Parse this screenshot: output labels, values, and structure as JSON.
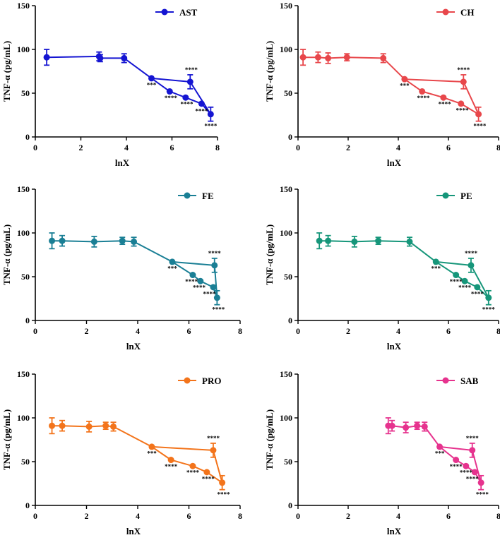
{
  "ylabel": "TNF-α (pg/mL)",
  "xlabel": "lnX",
  "xticks": [
    0,
    2,
    4,
    6,
    8
  ],
  "yticks": [
    0,
    50,
    100,
    150
  ],
  "chart_data": [
    {
      "type": "line",
      "name": "AST",
      "color": "#1515d2",
      "xlim": [
        0,
        8
      ],
      "ylim": [
        0,
        150
      ],
      "x": [
        0.5,
        2.8,
        2.85,
        3.9,
        5.1,
        5.9,
        6.6,
        6.8,
        7.3,
        7.7
      ],
      "y": [
        91,
        92,
        90,
        90,
        67,
        52,
        45,
        63,
        38,
        26
      ],
      "err": [
        9,
        5,
        4,
        5,
        0,
        0,
        0,
        8,
        0,
        8
      ],
      "order": [
        0,
        1,
        2,
        3,
        4,
        5,
        6,
        8,
        9,
        7,
        4
      ],
      "annotations": [
        {
          "text": "***",
          "x": 5.1,
          "y": 57
        },
        {
          "text": "****",
          "x": 5.95,
          "y": 42
        },
        {
          "text": "****",
          "x": 6.65,
          "y": 35
        },
        {
          "text": "****",
          "x": 6.85,
          "y": 74
        },
        {
          "text": "****",
          "x": 7.3,
          "y": 27
        },
        {
          "text": "****",
          "x": 7.7,
          "y": 10
        }
      ]
    },
    {
      "type": "line",
      "name": "CH",
      "color": "#e8474b",
      "xlim": [
        0,
        8
      ],
      "ylim": [
        0,
        150
      ],
      "x": [
        0.2,
        0.8,
        1.2,
        1.95,
        3.4,
        4.25,
        4.95,
        5.8,
        6.5,
        6.6,
        7.2
      ],
      "y": [
        91,
        91,
        90,
        91,
        90,
        66,
        52,
        45,
        38,
        63,
        26
      ],
      "err": [
        9,
        6,
        6,
        4,
        5,
        0,
        0,
        0,
        0,
        8,
        8
      ],
      "order": [
        0,
        1,
        2,
        3,
        4,
        5,
        6,
        7,
        8,
        10,
        9,
        5
      ],
      "annotations": [
        {
          "text": "***",
          "x": 4.25,
          "y": 56
        },
        {
          "text": "****",
          "x": 5.0,
          "y": 42
        },
        {
          "text": "****",
          "x": 5.85,
          "y": 35
        },
        {
          "text": "****",
          "x": 6.6,
          "y": 74
        },
        {
          "text": "****",
          "x": 6.55,
          "y": 28
        },
        {
          "text": "****",
          "x": 7.25,
          "y": 10
        }
      ]
    },
    {
      "type": "line",
      "name": "FE",
      "color": "#1a7f95",
      "xlim": [
        0,
        8
      ],
      "ylim": [
        0,
        150
      ],
      "x": [
        0.65,
        1.05,
        2.3,
        3.4,
        3.85,
        5.35,
        6.15,
        6.45,
        6.95,
        7.0,
        7.1
      ],
      "y": [
        91,
        91,
        90,
        91,
        90,
        67,
        52,
        45,
        38,
        63,
        26
      ],
      "err": [
        9,
        6,
        6,
        4,
        5,
        0,
        0,
        0,
        0,
        8,
        8
      ],
      "order": [
        0,
        1,
        2,
        3,
        4,
        5,
        6,
        7,
        8,
        10,
        9,
        5
      ],
      "annotations": [
        {
          "text": "***",
          "x": 5.35,
          "y": 57
        },
        {
          "text": "****",
          "x": 6.1,
          "y": 42
        },
        {
          "text": "****",
          "x": 6.4,
          "y": 35
        },
        {
          "text": "****",
          "x": 7.0,
          "y": 74
        },
        {
          "text": "****",
          "x": 6.8,
          "y": 28
        },
        {
          "text": "****",
          "x": 7.15,
          "y": 10
        }
      ]
    },
    {
      "type": "line",
      "name": "PE",
      "color": "#16967a",
      "xlim": [
        0,
        8
      ],
      "ylim": [
        0,
        150
      ],
      "x": [
        0.85,
        1.2,
        2.25,
        3.2,
        4.45,
        5.5,
        6.3,
        6.65,
        6.9,
        7.15,
        7.6
      ],
      "y": [
        91,
        91,
        90,
        91,
        90,
        67,
        52,
        45,
        63,
        38,
        26
      ],
      "err": [
        9,
        6,
        6,
        4,
        5,
        0,
        0,
        0,
        8,
        0,
        8
      ],
      "order": [
        0,
        1,
        2,
        3,
        4,
        5,
        6,
        7,
        9,
        10,
        8,
        5
      ],
      "annotations": [
        {
          "text": "***",
          "x": 5.5,
          "y": 57
        },
        {
          "text": "****",
          "x": 6.3,
          "y": 42
        },
        {
          "text": "****",
          "x": 6.65,
          "y": 35
        },
        {
          "text": "****",
          "x": 6.9,
          "y": 74
        },
        {
          "text": "****",
          "x": 7.15,
          "y": 28
        },
        {
          "text": "****",
          "x": 7.6,
          "y": 10
        }
      ]
    },
    {
      "type": "line",
      "name": "PRO",
      "color": "#f3741b",
      "xlim": [
        0,
        8
      ],
      "ylim": [
        0,
        150
      ],
      "x": [
        0.65,
        1.05,
        2.1,
        2.75,
        3.05,
        4.55,
        5.3,
        6.15,
        6.7,
        6.95,
        7.3
      ],
      "y": [
        91,
        91,
        90,
        91,
        90,
        67,
        52,
        45,
        38,
        63,
        26
      ],
      "err": [
        9,
        6,
        6,
        4,
        5,
        0,
        0,
        0,
        0,
        8,
        8
      ],
      "order": [
        0,
        1,
        2,
        3,
        4,
        5,
        6,
        7,
        8,
        10,
        9,
        5
      ],
      "annotations": [
        {
          "text": "***",
          "x": 4.55,
          "y": 57
        },
        {
          "text": "****",
          "x": 5.3,
          "y": 42
        },
        {
          "text": "****",
          "x": 6.15,
          "y": 35
        },
        {
          "text": "****",
          "x": 6.95,
          "y": 74
        },
        {
          "text": "****",
          "x": 6.75,
          "y": 28
        },
        {
          "text": "****",
          "x": 7.35,
          "y": 10
        }
      ]
    },
    {
      "type": "line",
      "name": "SAB",
      "color": "#e6338e",
      "xlim": [
        0,
        8
      ],
      "ylim": [
        0,
        150
      ],
      "x": [
        3.6,
        3.75,
        4.3,
        4.75,
        5.05,
        5.65,
        6.3,
        6.7,
        6.95,
        7.05,
        7.3
      ],
      "y": [
        91,
        91,
        89,
        91,
        90,
        67,
        52,
        45,
        63,
        38,
        26
      ],
      "err": [
        9,
        6,
        6,
        4,
        5,
        0,
        0,
        0,
        8,
        0,
        8
      ],
      "order": [
        0,
        1,
        2,
        3,
        4,
        5,
        6,
        7,
        9,
        10,
        8,
        5
      ],
      "annotations": [
        {
          "text": "***",
          "x": 5.65,
          "y": 57
        },
        {
          "text": "****",
          "x": 6.3,
          "y": 42
        },
        {
          "text": "****",
          "x": 6.7,
          "y": 35
        },
        {
          "text": "****",
          "x": 6.95,
          "y": 74
        },
        {
          "text": "****",
          "x": 6.95,
          "y": 28
        },
        {
          "text": "****",
          "x": 7.35,
          "y": 10
        }
      ]
    }
  ]
}
